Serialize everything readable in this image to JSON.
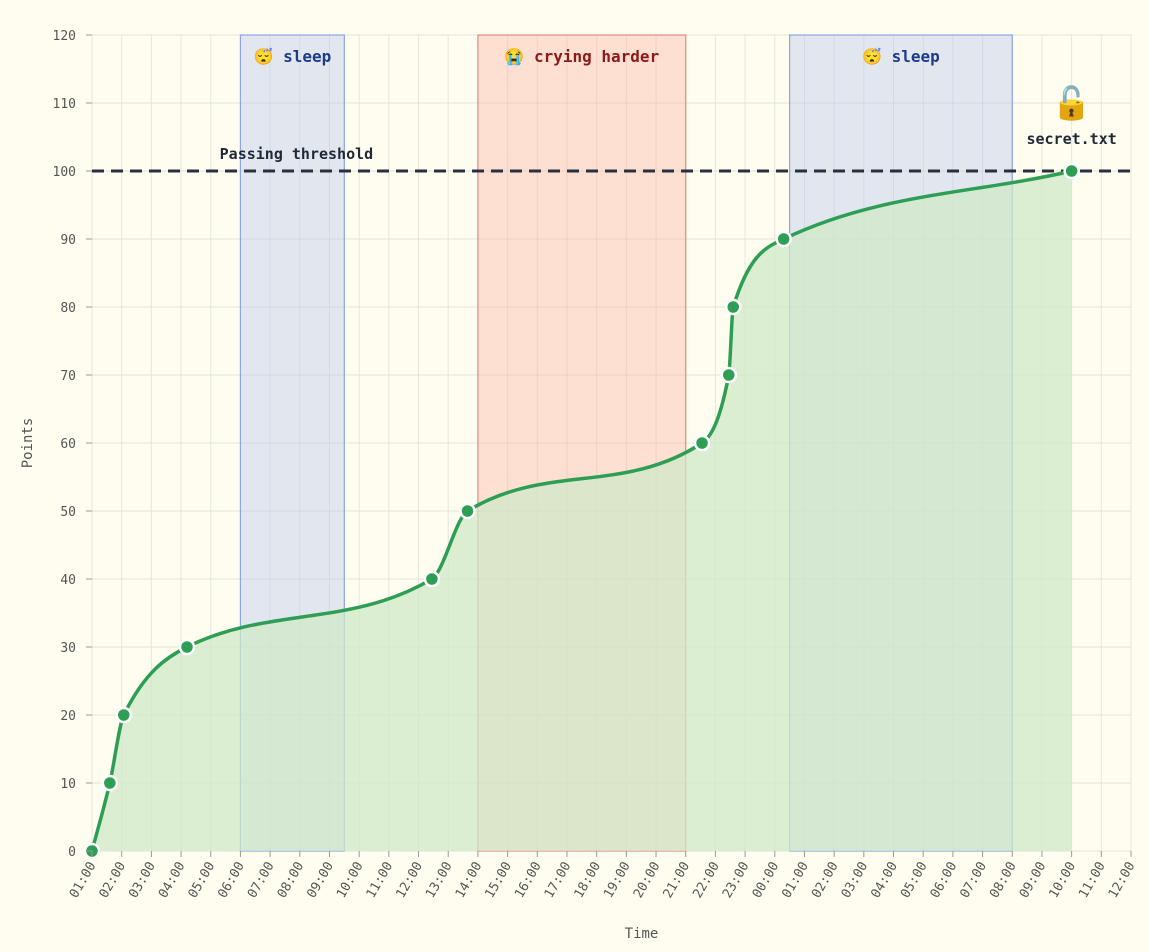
{
  "chart_data": {
    "type": "area",
    "xlabel": "Time",
    "ylabel": "Points",
    "ylim": [
      0,
      120
    ],
    "y_ticks": [
      0,
      10,
      20,
      30,
      40,
      50,
      60,
      70,
      80,
      90,
      100,
      110,
      120
    ],
    "x_ticks": [
      "01:00",
      "02:00",
      "03:00",
      "04:00",
      "05:00",
      "06:00",
      "07:00",
      "08:00",
      "09:00",
      "10:00",
      "11:00",
      "12:00",
      "13:00",
      "14:00",
      "15:00",
      "16:00",
      "17:00",
      "18:00",
      "19:00",
      "20:00",
      "21:00",
      "22:00",
      "23:00",
      "00:00",
      "01:00",
      "02:00",
      "03:00",
      "04:00",
      "05:00",
      "06:00",
      "07:00",
      "08:00",
      "09:00",
      "10:00",
      "11:00",
      "12:00"
    ],
    "x_range_hours": [
      0,
      35
    ],
    "grid": true,
    "series": [
      {
        "x_hours": [
          0,
          0.6,
          1.07,
          3.2,
          11.45,
          12.65,
          20.55,
          21.45,
          21.6,
          23.3,
          33
        ],
        "y": [
          0,
          10,
          20,
          30,
          40,
          50,
          60,
          70,
          80,
          90,
          100
        ]
      }
    ],
    "threshold": {
      "y": 100,
      "label": "Passing threshold"
    },
    "bands": [
      {
        "label": "sleep",
        "emoji": "😴",
        "start_hours": 5,
        "end_hours": 8.5,
        "kind": "sleep"
      },
      {
        "label": "crying harder",
        "emoji": "😭",
        "start_hours": 13,
        "end_hours": 20,
        "kind": "crying"
      },
      {
        "label": "sleep",
        "emoji": "😴",
        "start_hours": 23.5,
        "end_hours": 31,
        "kind": "sleep"
      }
    ],
    "endpoint_annotation": {
      "icon": "🔓",
      "label": "secret.txt"
    },
    "colors": {
      "line": "#2e9e55",
      "area": "#cfe8c8",
      "sleep_band": "#b9c9ee",
      "sleep_border": "#8aa5e0",
      "sleep_text": "#1e3a8a",
      "cry_band": "#fbb8a8",
      "cry_border": "#e08a80",
      "cry_text": "#8b1a1a",
      "threshold": "#283040",
      "background": "#fffdf0"
    }
  }
}
